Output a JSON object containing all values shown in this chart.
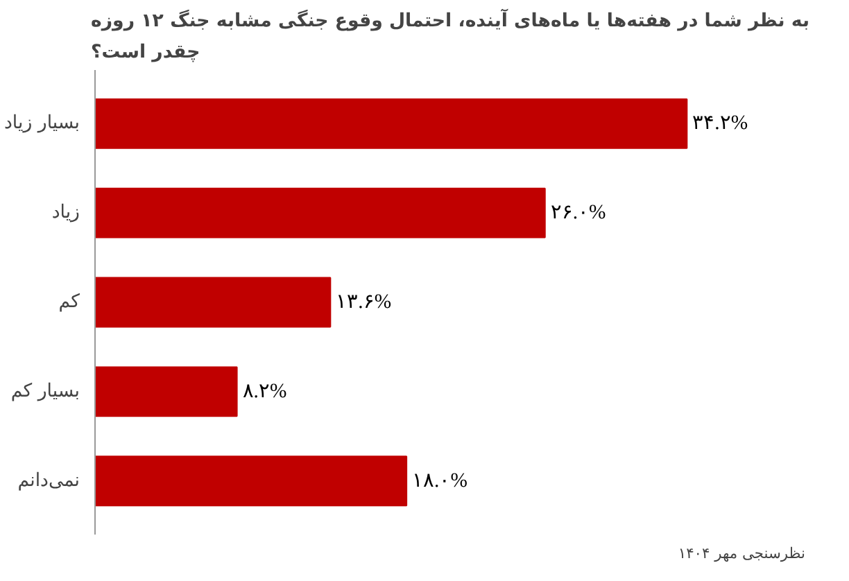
{
  "chart_data": {
    "type": "bar",
    "orientation": "horizontal",
    "title": "به نظر شما در هفته‌ها یا ماه‌های آینده، احتمال وقوع جنگی مشابه جنگ ۱۲ روزه\nچقدر است؟",
    "categories": [
      "بسیار زیاد",
      "زیاد",
      "کم",
      "بسیار کم",
      "نمی‌دانم"
    ],
    "values": [
      34.2,
      26.0,
      13.6,
      8.2,
      18.0
    ],
    "value_labels": [
      "۳۴.۲%",
      "۲۶.۰%",
      "۱۳.۶%",
      "۸.۲%",
      "۱۸.۰%"
    ],
    "color": "#c00000",
    "grid": false,
    "annotations": [
      "نظرسنجی مهر ۱۴۰۴"
    ]
  }
}
